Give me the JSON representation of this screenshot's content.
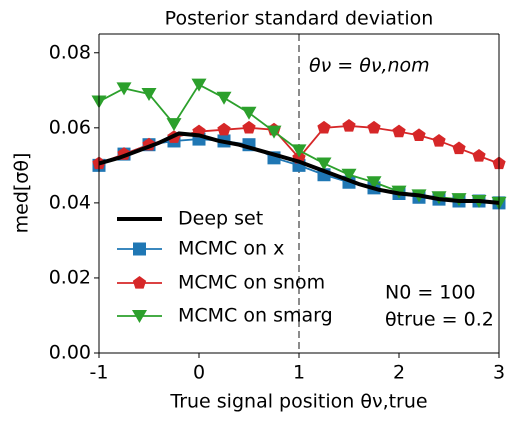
{
  "chart_data": {
    "type": "line",
    "title": "Posterior standard deviation",
    "xlabel": "True signal position θν,true",
    "ylabel": "med[σθ]",
    "xlim": [
      -1,
      3
    ],
    "ylim": [
      0,
      0.085
    ],
    "xticks": [
      -1,
      0,
      1,
      2,
      3
    ],
    "yticks": [
      {
        "value": 0,
        "label": "0.00"
      },
      {
        "value": 0.02,
        "label": "0.02"
      },
      {
        "value": 0.04,
        "label": "0.04"
      },
      {
        "value": 0.06,
        "label": "0.06"
      },
      {
        "value": 0.08,
        "label": "0.08"
      }
    ],
    "vline": {
      "x": 1,
      "color": "#808080",
      "label": "θν = θν,nom"
    },
    "annotations": [
      "N0 = 100",
      "θtrue = 0.2"
    ],
    "legend": "lower left",
    "series": [
      {
        "name": "Deep set",
        "color": "#000000",
        "marker": "none",
        "x": [
          -1,
          -0.8,
          -0.6,
          -0.4,
          -0.2,
          0,
          0.2,
          0.4,
          0.6,
          0.8,
          1,
          1.2,
          1.4,
          1.6,
          1.8,
          2,
          2.2,
          2.4,
          2.6,
          2.8,
          3
        ],
        "values": [
          0.0505,
          0.052,
          0.054,
          0.056,
          0.0585,
          0.058,
          0.0565,
          0.0555,
          0.054,
          0.0525,
          0.051,
          0.049,
          0.047,
          0.045,
          0.0435,
          0.0425,
          0.042,
          0.041,
          0.0405,
          0.0405,
          0.04
        ]
      },
      {
        "name": "MCMC on x",
        "color": "#1f77b4",
        "marker": "square",
        "x": [
          -1,
          -0.75,
          -0.5,
          -0.25,
          0,
          0.25,
          0.5,
          0.75,
          1,
          1.25,
          1.5,
          1.75,
          2,
          2.2,
          2.4,
          2.6,
          2.8,
          3
        ],
        "values": [
          0.05,
          0.053,
          0.0555,
          0.0565,
          0.057,
          0.0565,
          0.0555,
          0.052,
          0.05,
          0.0475,
          0.0455,
          0.044,
          0.0425,
          0.0415,
          0.041,
          0.0405,
          0.0405,
          0.04
        ]
      },
      {
        "name": "MCMC on snom",
        "color": "#d62728",
        "marker": "pentagon",
        "x": [
          -1,
          -0.75,
          -0.5,
          -0.25,
          0,
          0.25,
          0.5,
          0.75,
          1,
          1.25,
          1.5,
          1.75,
          2,
          2.2,
          2.4,
          2.6,
          2.8,
          3
        ],
        "values": [
          0.0505,
          0.053,
          0.0555,
          0.0575,
          0.059,
          0.0595,
          0.06,
          0.0595,
          0.052,
          0.06,
          0.0605,
          0.06,
          0.059,
          0.058,
          0.0565,
          0.0545,
          0.0525,
          0.0505
        ]
      },
      {
        "name": "MCMC on smarg",
        "color": "#2ca02c",
        "marker": "triangle-down",
        "x": [
          -1,
          -0.75,
          -0.5,
          -0.25,
          0,
          0.25,
          0.5,
          0.75,
          1,
          1.25,
          1.5,
          1.75,
          2,
          2.2,
          2.4,
          2.6,
          2.8,
          3
        ],
        "values": [
          0.067,
          0.0705,
          0.069,
          0.061,
          0.0715,
          0.068,
          0.064,
          0.059,
          0.054,
          0.0505,
          0.0475,
          0.0455,
          0.043,
          0.042,
          0.0415,
          0.041,
          0.0405,
          0.04
        ]
      }
    ]
  }
}
